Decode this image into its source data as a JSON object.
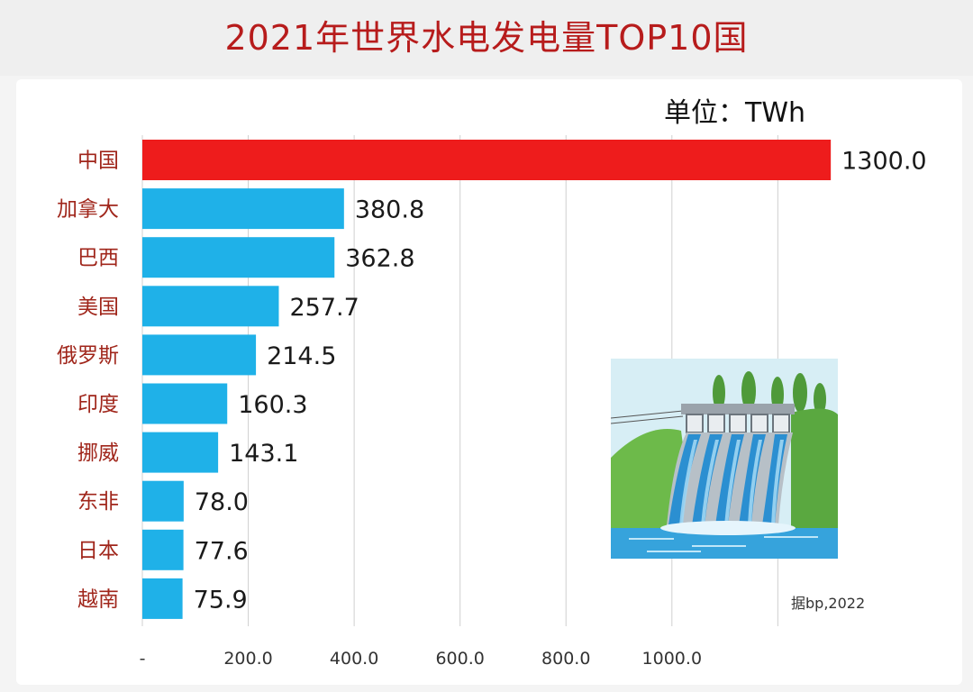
{
  "chart_data": {
    "type": "bar",
    "orientation": "horizontal",
    "title": "2021年世界水电发电量TOP10国",
    "unit_label": "单位：TWh",
    "categories": [
      "中国",
      "加拿大",
      "巴西",
      "美国",
      "俄罗斯",
      "印度",
      "挪威",
      "东非",
      "日本",
      "越南"
    ],
    "values": [
      1300.0,
      380.8,
      362.8,
      257.7,
      214.5,
      160.3,
      143.1,
      78.0,
      77.6,
      75.9
    ],
    "value_labels": [
      "1300.0",
      "380.8",
      "362.8",
      "257.7",
      "214.5",
      "160.3",
      "143.1",
      "78.0",
      "77.6",
      "75.9"
    ],
    "highlight_color": "#ee1c1c",
    "bar_color": "#1fb1e8",
    "xaxis_ticks": [
      0,
      200,
      400,
      600,
      800,
      1000
    ],
    "xaxis_tick_labels": [
      "-",
      "200.0",
      "400.0",
      "600.0",
      "800.0",
      "1000.0"
    ],
    "xlim": [
      0,
      1200
    ],
    "grid": "vertical",
    "source": "据bp,2022"
  },
  "illustration": {
    "icon": "hydro-dam-icon"
  }
}
